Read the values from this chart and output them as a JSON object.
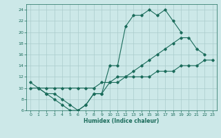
{
  "xlabel": "Humidex (Indice chaleur)",
  "xlim": [
    -0.5,
    23.5
  ],
  "ylim": [
    6,
    25
  ],
  "xticks": [
    0,
    1,
    2,
    3,
    4,
    5,
    6,
    7,
    8,
    9,
    10,
    11,
    12,
    13,
    14,
    15,
    16,
    17,
    18,
    19,
    20,
    21,
    22,
    23
  ],
  "yticks": [
    6,
    8,
    10,
    12,
    14,
    16,
    18,
    20,
    22,
    24
  ],
  "bg_color": "#cce8e8",
  "grid_color": "#aacccc",
  "line_color": "#1a6b5a",
  "line1_x": [
    0,
    1,
    2,
    3,
    4,
    5,
    6,
    7,
    8,
    9,
    10,
    11,
    12,
    13,
    14,
    15,
    16,
    17,
    18,
    19
  ],
  "line1_y": [
    11,
    10,
    9,
    8,
    7,
    6,
    6,
    7,
    9,
    9,
    14,
    14,
    21,
    23,
    23,
    24,
    23,
    24,
    22,
    20
  ],
  "line2_x": [
    1,
    2,
    3,
    4,
    5,
    6,
    7,
    8,
    9,
    10,
    11,
    12,
    13,
    14,
    15,
    16,
    17,
    18,
    19,
    20,
    21,
    22
  ],
  "line2_y": [
    10,
    9,
    9,
    8,
    7,
    6,
    7,
    9,
    9,
    11,
    12,
    12,
    13,
    14,
    15,
    16,
    17,
    18,
    19,
    19,
    17,
    16
  ],
  "line3_x": [
    0,
    1,
    2,
    3,
    4,
    5,
    6,
    7,
    8,
    9,
    10,
    11,
    12,
    13,
    14,
    15,
    16,
    17,
    18,
    19,
    20,
    21,
    22,
    23
  ],
  "line3_y": [
    10,
    10,
    10,
    10,
    10,
    10,
    10,
    10,
    10,
    11,
    11,
    11,
    12,
    12,
    12,
    12,
    13,
    13,
    13,
    14,
    14,
    14,
    15,
    15
  ]
}
